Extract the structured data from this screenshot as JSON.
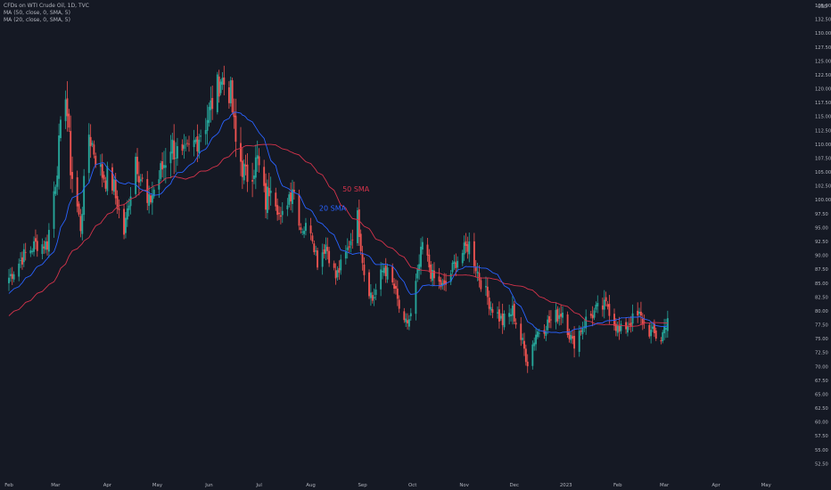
{
  "header": {
    "symbol_line": "CFDs on WTI Crude Oil, 1D, TVC",
    "ma50_line": "MA (50, close, 0, SMA, 5)",
    "ma20_line": "MA (20, close, 0, SMA, 5)"
  },
  "colors": {
    "background": "#151924",
    "grid": "#232733",
    "up": "#26a69a",
    "down": "#ef5350",
    "ma50": "#d4334b",
    "ma20": "#2962ff",
    "text": "#b2b5be"
  },
  "chart_data": {
    "type": "candlestick",
    "title": "CFDs on WTI Crude Oil, 1D, TVC",
    "ylim": [
      50,
      135
    ],
    "y_ticks": [
      "52.50",
      "55.00",
      "57.50",
      "60.00",
      "62.50",
      "65.00",
      "67.50",
      "70.00",
      "72.50",
      "75.00",
      "77.50",
      "80.00",
      "82.50",
      "85.00",
      "87.50",
      "90.00",
      "92.50",
      "95.00",
      "97.50",
      "100.00",
      "102.50",
      "105.00",
      "107.50",
      "110.00",
      "112.50",
      "115.00",
      "117.50",
      "120.00",
      "122.50",
      "125.00",
      "127.50",
      "130.00",
      "132.50",
      "135.00"
    ],
    "y_top_label": "USD",
    "x_ticks": [
      "Feb",
      "Mar",
      "Apr",
      "May",
      "Jun",
      "Jul",
      "Aug",
      "Sep",
      "Oct",
      "Nov",
      "Dec",
      "2023",
      "Feb",
      "Mar",
      "Apr",
      "May"
    ],
    "x_range": [
      "2022-02-01",
      "2023-05-18"
    ],
    "grid": false,
    "close_anchors": [
      [
        "2022-02-01",
        86
      ],
      [
        "2022-02-10",
        90
      ],
      [
        "2022-02-17",
        92
      ],
      [
        "2022-02-24",
        92
      ],
      [
        "2022-03-01",
        104
      ],
      [
        "2022-03-07",
        120
      ],
      [
        "2022-03-10",
        106
      ],
      [
        "2022-03-16",
        95
      ],
      [
        "2022-03-21",
        112
      ],
      [
        "2022-03-28",
        105
      ],
      [
        "2022-04-04",
        103
      ],
      [
        "2022-04-11",
        94
      ],
      [
        "2022-04-18",
        108
      ],
      [
        "2022-04-25",
        99
      ],
      [
        "2022-05-02",
        104
      ],
      [
        "2022-05-09",
        110
      ],
      [
        "2022-05-16",
        107
      ],
      [
        "2022-05-23",
        110
      ],
      [
        "2022-05-30",
        114
      ],
      [
        "2022-06-08",
        122
      ],
      [
        "2022-06-14",
        119
      ],
      [
        "2022-06-17",
        110
      ],
      [
        "2022-06-23",
        104
      ],
      [
        "2022-06-30",
        107
      ],
      [
        "2022-07-05",
        99
      ],
      [
        "2022-07-08",
        104
      ],
      [
        "2022-07-14",
        96
      ],
      [
        "2022-07-21",
        103
      ],
      [
        "2022-07-26",
        95
      ],
      [
        "2022-08-01",
        95
      ],
      [
        "2022-08-05",
        89
      ],
      [
        "2022-08-10",
        92
      ],
      [
        "2022-08-16",
        86
      ],
      [
        "2022-08-22",
        90
      ],
      [
        "2022-08-29",
        97
      ],
      [
        "2022-09-02",
        87
      ],
      [
        "2022-09-07",
        82
      ],
      [
        "2022-09-14",
        88
      ],
      [
        "2022-09-20",
        84
      ],
      [
        "2022-09-26",
        77
      ],
      [
        "2022-09-30",
        79
      ],
      [
        "2022-10-07",
        92
      ],
      [
        "2022-10-13",
        86
      ],
      [
        "2022-10-20",
        84
      ],
      [
        "2022-10-27",
        89
      ],
      [
        "2022-11-04",
        92
      ],
      [
        "2022-11-10",
        86
      ],
      [
        "2022-11-17",
        81
      ],
      [
        "2022-11-24",
        78
      ],
      [
        "2022-11-30",
        80
      ],
      [
        "2022-12-06",
        74
      ],
      [
        "2022-12-09",
        71
      ],
      [
        "2022-12-14",
        76
      ],
      [
        "2022-12-22",
        78
      ],
      [
        "2022-12-30",
        80
      ],
      [
        "2023-01-05",
        74
      ],
      [
        "2023-01-12",
        78
      ],
      [
        "2023-01-19",
        80
      ],
      [
        "2023-01-26",
        81
      ],
      [
        "2023-02-02",
        76
      ],
      [
        "2023-02-08",
        78
      ],
      [
        "2023-02-14",
        79
      ],
      [
        "2023-02-21",
        76
      ],
      [
        "2023-02-27",
        75
      ],
      [
        "2023-03-03",
        79
      ]
    ],
    "annotations": [
      {
        "text": "50 SMA",
        "date": "2022-08-20",
        "price": 101.5,
        "color": "#d4334b"
      },
      {
        "text": "20 SMA",
        "date": "2022-08-06",
        "price": 98.0,
        "color": "#2962ff"
      }
    ],
    "series": [
      {
        "name": "MA (50, close, 0, SMA, 5)",
        "period": 50,
        "color": "#d4334b"
      },
      {
        "name": "MA (20, close, 0, SMA, 5)",
        "period": 20,
        "color": "#2962ff"
      }
    ]
  }
}
